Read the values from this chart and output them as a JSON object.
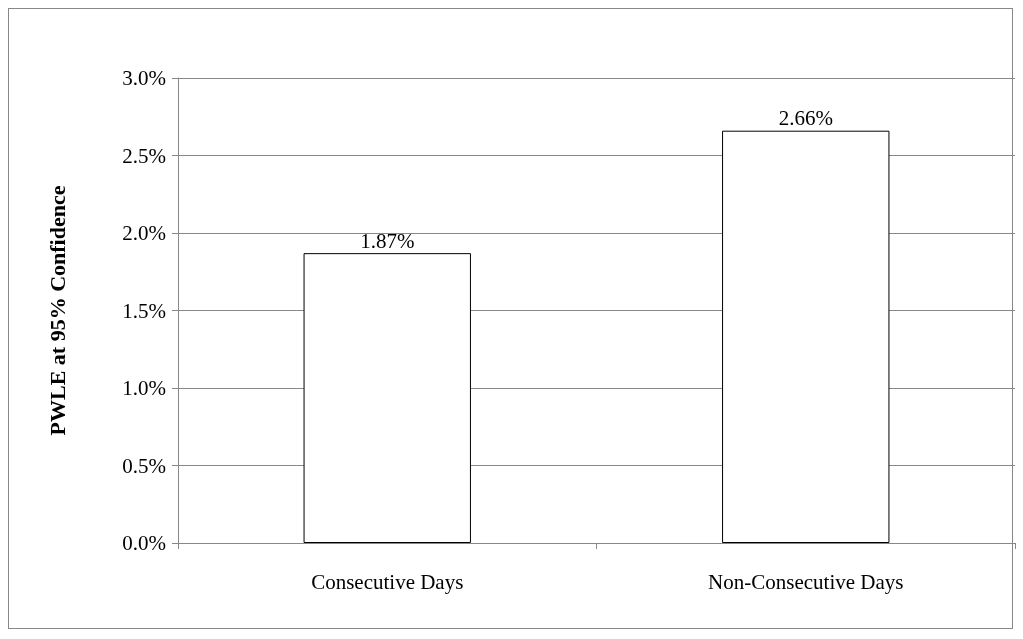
{
  "chart_data": {
    "type": "bar",
    "ylabel": "PWLE at 95% Confidence",
    "categories": [
      "Consecutive Days",
      "Non-Consecutive Days"
    ],
    "values": [
      1.87,
      2.66
    ],
    "color": "#ffffff",
    "value_labels": [
      "1.87%",
      "2.66%"
    ],
    "ylim": [
      0,
      3
    ],
    "yticks": [
      {
        "value": 0,
        "label": "0.0%"
      },
      {
        "value": 0.5,
        "label": "0.5%"
      },
      {
        "value": 1,
        "label": "1.0%"
      },
      {
        "value": 1.5,
        "label": "1.5%"
      },
      {
        "value": 2,
        "label": "2.0%"
      },
      {
        "value": 2.5,
        "label": "2.5%"
      },
      {
        "value": 3,
        "label": "3.0%"
      }
    ],
    "grid": "y"
  }
}
